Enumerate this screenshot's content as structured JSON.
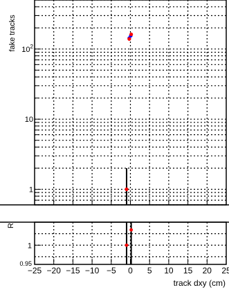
{
  "chart_data": [
    {
      "type": "scatter",
      "ylabel": "fake tracks",
      "yscale": "log",
      "ylim": [
        0.6,
        500
      ],
      "xlim": [
        -25,
        25
      ],
      "grid": true,
      "y_tick_labels": [
        "1",
        "10",
        "10²"
      ],
      "series": [
        {
          "color": "#0000ff",
          "points": [
            {
              "x": -0.3,
              "y": 143
            },
            {
              "x": 0.1,
              "y": 155
            }
          ]
        },
        {
          "color": "#ff0000",
          "points": [
            {
              "x": -0.3,
              "y": 139
            },
            {
              "x": 0.2,
              "y": 162
            },
            {
              "x": -1.0,
              "y": 1.0
            }
          ]
        }
      ],
      "error_bars": [
        {
          "x": -1.0,
          "y": 1.0,
          "low": 0.6,
          "high": 2.0
        }
      ]
    },
    {
      "type": "scatter",
      "ylabel": "R",
      "xlabel": "track dxy (cm)",
      "ylim": [
        0.95,
        1.06
      ],
      "xlim": [
        -25,
        25
      ],
      "grid": true,
      "y_tick_labels": [
        "1",
        "0.95"
      ],
      "x_tick_labels": [
        "−25",
        "−20",
        "−15",
        "−10",
        "−5",
        "0",
        "5",
        "10",
        "15",
        "20",
        "25"
      ],
      "x_tick_values": [
        -25,
        -20,
        -15,
        -10,
        -5,
        0,
        5,
        10,
        15,
        20,
        25
      ],
      "series": [
        {
          "color": "#ff0000",
          "points": [
            {
              "x": -1.0,
              "y": 1.0
            },
            {
              "x": 0.2,
              "y": 1.04
            }
          ]
        }
      ],
      "error_bars": [
        {
          "x": -1.0,
          "low": 0.95,
          "high": 1.06
        },
        {
          "x": 0.2,
          "low": 0.95,
          "high": 1.06
        }
      ]
    }
  ]
}
